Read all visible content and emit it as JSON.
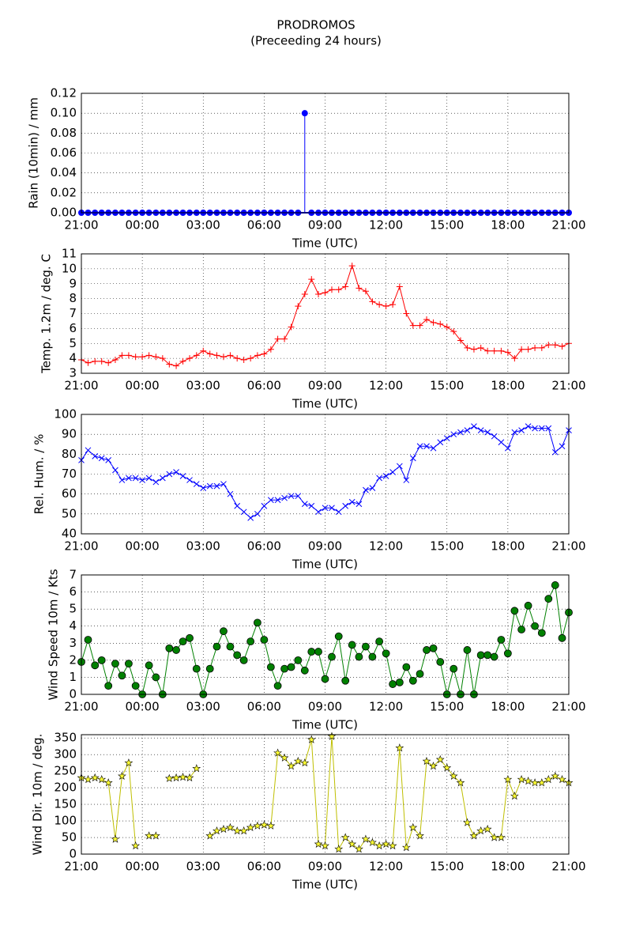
{
  "chart_data": [
    {
      "type": "stem",
      "title": "PRODROMOS",
      "subtitle": "(Preceeding 24 hours)",
      "ylabel": "Rain (10min) / mm",
      "xlabel": "Time (UTC)",
      "color": "#0000ff",
      "marker": "circle",
      "grid": true,
      "xlim": [
        0,
        24
      ],
      "xticks": [
        {
          "value": 0,
          "label": "21:00"
        },
        {
          "value": 3,
          "label": "00:00"
        },
        {
          "value": 6,
          "label": "03:00"
        },
        {
          "value": 9,
          "label": "06:00"
        },
        {
          "value": 12,
          "label": "09:00"
        },
        {
          "value": 15,
          "label": "12:00"
        },
        {
          "value": 18,
          "label": "15:00"
        },
        {
          "value": 21,
          "label": "18:00"
        },
        {
          "value": 24,
          "label": "21:00"
        }
      ],
      "ylim": [
        0,
        0.12
      ],
      "yticks": [
        {
          "value": 0,
          "label": "0.00"
        },
        {
          "value": 0.02,
          "label": "0.02"
        },
        {
          "value": 0.04,
          "label": "0.04"
        },
        {
          "value": 0.06,
          "label": "0.06"
        },
        {
          "value": 0.08,
          "label": "0.08"
        },
        {
          "value": 0.1,
          "label": "0.10"
        },
        {
          "value": 0.12,
          "label": "0.12"
        }
      ],
      "x": [
        0,
        0.33,
        0.67,
        1,
        1.33,
        1.67,
        2,
        2.33,
        2.67,
        3,
        3.33,
        3.67,
        4,
        4.33,
        4.67,
        5,
        5.33,
        5.67,
        6,
        6.33,
        6.67,
        7,
        7.33,
        7.67,
        8,
        8.33,
        8.67,
        9,
        9.33,
        9.67,
        10,
        10.33,
        10.67,
        11,
        11.33,
        11.67,
        12,
        12.33,
        12.67,
        13,
        13.33,
        13.67,
        14,
        14.33,
        14.67,
        15,
        15.33,
        15.67,
        16,
        16.33,
        16.67,
        17,
        17.33,
        17.67,
        18,
        18.33,
        18.67,
        19,
        19.33,
        19.67,
        20,
        20.33,
        20.67,
        21,
        21.33,
        21.67,
        22,
        22.33,
        22.67,
        23,
        23.33,
        23.67,
        24
      ],
      "values": [
        0,
        0,
        0,
        0,
        0,
        0,
        0,
        0,
        0,
        0,
        0,
        0,
        0,
        0,
        0,
        0,
        0,
        0,
        0,
        0,
        0,
        0,
        0,
        0,
        0,
        0,
        0,
        0,
        0,
        0,
        0,
        0,
        0,
        0.1,
        0,
        0,
        0,
        0,
        0,
        0,
        0,
        0,
        0,
        0,
        0,
        0,
        0,
        0,
        0,
        0,
        0,
        0,
        0,
        0,
        0,
        0,
        0,
        0,
        0,
        0,
        0,
        0,
        0,
        0,
        0,
        0,
        0,
        0,
        0,
        0,
        0,
        0,
        0
      ]
    },
    {
      "type": "line",
      "ylabel": "Temp. 1.2m / deg. C",
      "xlabel": "Time (UTC)",
      "color": "#ff0000",
      "marker": "plus",
      "grid": true,
      "xlim": [
        0,
        24
      ],
      "xticks": [
        {
          "value": 0,
          "label": "21:00"
        },
        {
          "value": 3,
          "label": "00:00"
        },
        {
          "value": 6,
          "label": "03:00"
        },
        {
          "value": 9,
          "label": "06:00"
        },
        {
          "value": 12,
          "label": "09:00"
        },
        {
          "value": 15,
          "label": "12:00"
        },
        {
          "value": 18,
          "label": "15:00"
        },
        {
          "value": 21,
          "label": "18:00"
        },
        {
          "value": 24,
          "label": "21:00"
        }
      ],
      "ylim": [
        3,
        11
      ],
      "yticks": [
        3,
        4,
        5,
        6,
        7,
        8,
        9,
        10,
        11
      ],
      "x": [
        0,
        0.33,
        0.67,
        1,
        1.33,
        1.67,
        2,
        2.33,
        2.67,
        3,
        3.33,
        3.67,
        4,
        4.33,
        4.67,
        5,
        5.33,
        5.67,
        6,
        6.33,
        6.67,
        7,
        7.33,
        7.67,
        8,
        8.33,
        8.67,
        9,
        9.33,
        9.67,
        10,
        10.33,
        10.67,
        11,
        11.33,
        11.67,
        12,
        12.33,
        12.67,
        13,
        13.33,
        13.67,
        14,
        14.33,
        14.67,
        15,
        15.33,
        15.67,
        16,
        16.33,
        16.67,
        17,
        17.33,
        17.67,
        18,
        18.33,
        18.67,
        19,
        19.33,
        19.67,
        20,
        20.33,
        20.67,
        21,
        21.33,
        21.67,
        22,
        22.33,
        22.67,
        23,
        23.33,
        23.67,
        24
      ],
      "values": [
        3.9,
        3.7,
        3.8,
        3.8,
        3.7,
        3.9,
        4.2,
        4.2,
        4.1,
        4.1,
        4.2,
        4.1,
        4.0,
        3.6,
        3.5,
        3.8,
        4.0,
        4.2,
        4.5,
        4.3,
        4.2,
        4.1,
        4.2,
        4.0,
        3.9,
        4.0,
        4.2,
        4.3,
        4.6,
        5.3,
        5.3,
        6.1,
        7.5,
        8.3,
        9.3,
        8.3,
        8.4,
        8.6,
        8.6,
        8.8,
        10.2,
        8.7,
        8.5,
        7.8,
        7.6,
        7.5,
        7.6,
        8.8,
        7.0,
        6.2,
        6.2,
        6.6,
        6.4,
        6.3,
        6.1,
        5.8,
        5.2,
        4.7,
        4.6,
        4.7,
        4.5,
        4.5,
        4.5,
        4.4,
        4.0,
        4.6,
        4.6,
        4.7,
        4.7,
        4.9,
        4.9,
        4.8,
        5.0
      ]
    },
    {
      "type": "line",
      "ylabel": "Rel. Hum. / %",
      "xlabel": "Time (UTC)",
      "color": "#0000ff",
      "marker": "cross",
      "grid": true,
      "xlim": [
        0,
        24
      ],
      "xticks": [
        {
          "value": 0,
          "label": "21:00"
        },
        {
          "value": 3,
          "label": "00:00"
        },
        {
          "value": 6,
          "label": "03:00"
        },
        {
          "value": 9,
          "label": "06:00"
        },
        {
          "value": 12,
          "label": "09:00"
        },
        {
          "value": 15,
          "label": "12:00"
        },
        {
          "value": 18,
          "label": "15:00"
        },
        {
          "value": 21,
          "label": "18:00"
        },
        {
          "value": 24,
          "label": "21:00"
        }
      ],
      "ylim": [
        40,
        100
      ],
      "yticks": [
        40,
        50,
        60,
        70,
        80,
        90,
        100
      ],
      "x": [
        0,
        0.33,
        0.67,
        1,
        1.33,
        1.67,
        2,
        2.33,
        2.67,
        3,
        3.33,
        3.67,
        4,
        4.33,
        4.67,
        5,
        5.33,
        5.67,
        6,
        6.33,
        6.67,
        7,
        7.33,
        7.67,
        8,
        8.33,
        8.67,
        9,
        9.33,
        9.67,
        10,
        10.33,
        10.67,
        11,
        11.33,
        11.67,
        12,
        12.33,
        12.67,
        13,
        13.33,
        13.67,
        14,
        14.33,
        14.67,
        15,
        15.33,
        15.67,
        16,
        16.33,
        16.67,
        17,
        17.33,
        17.67,
        18,
        18.33,
        18.67,
        19,
        19.33,
        19.67,
        20,
        20.33,
        20.67,
        21,
        21.33,
        21.67,
        22,
        22.33,
        22.67,
        23,
        23.33,
        23.67,
        24
      ],
      "values": [
        77,
        82,
        79,
        78,
        77,
        72,
        67,
        68,
        68,
        67,
        68,
        66,
        68,
        70,
        71,
        69,
        67,
        65,
        63,
        64,
        64,
        65,
        60,
        54,
        51,
        48,
        50,
        54,
        57,
        57,
        58,
        59,
        59,
        55,
        54,
        51,
        53,
        53,
        51,
        54,
        56,
        55,
        62,
        63,
        68,
        69,
        71,
        74,
        67,
        78,
        84,
        84,
        83,
        86,
        88,
        90,
        91,
        92,
        94,
        92,
        91,
        89,
        86,
        83,
        91,
        92,
        94,
        93,
        93,
        93,
        81,
        84,
        92
      ]
    },
    {
      "type": "line",
      "ylabel": "Wind Speed 10m / Kts",
      "xlabel": "Time (UTC)",
      "color": "#008000",
      "marker": "circle",
      "grid": true,
      "xlim": [
        0,
        24
      ],
      "xticks": [
        {
          "value": 0,
          "label": "21:00"
        },
        {
          "value": 3,
          "label": "00:00"
        },
        {
          "value": 6,
          "label": "03:00"
        },
        {
          "value": 9,
          "label": "06:00"
        },
        {
          "value": 12,
          "label": "09:00"
        },
        {
          "value": 15,
          "label": "12:00"
        },
        {
          "value": 18,
          "label": "15:00"
        },
        {
          "value": 21,
          "label": "18:00"
        },
        {
          "value": 24,
          "label": "21:00"
        }
      ],
      "ylim": [
        0,
        7
      ],
      "yticks": [
        0,
        1,
        2,
        3,
        4,
        5,
        6,
        7
      ],
      "x": [
        0,
        0.33,
        0.67,
        1,
        1.33,
        1.67,
        2,
        2.33,
        2.67,
        3,
        3.33,
        3.67,
        4,
        4.33,
        4.67,
        5,
        5.33,
        5.67,
        6,
        6.33,
        6.67,
        7,
        7.33,
        7.67,
        8,
        8.33,
        8.67,
        9,
        9.33,
        9.67,
        10,
        10.33,
        10.67,
        11,
        11.33,
        11.67,
        12,
        12.33,
        12.67,
        13,
        13.33,
        13.67,
        14,
        14.33,
        14.67,
        15,
        15.33,
        15.67,
        16,
        16.33,
        16.67,
        17,
        17.33,
        17.67,
        18,
        18.33,
        18.67,
        19,
        19.33,
        19.67,
        20,
        20.33,
        20.67,
        21,
        21.33,
        21.67,
        22,
        22.33,
        22.67,
        23,
        23.33,
        23.67,
        24
      ],
      "values": [
        1.9,
        3.2,
        1.7,
        2.0,
        0.5,
        1.8,
        1.1,
        1.8,
        0.5,
        0,
        1.7,
        1.0,
        0,
        2.7,
        2.6,
        3.1,
        3.3,
        1.5,
        0,
        1.5,
        2.8,
        3.7,
        2.8,
        2.3,
        2.0,
        3.1,
        4.2,
        3.2,
        1.6,
        0.5,
        1.5,
        1.6,
        2.0,
        1.4,
        2.5,
        2.5,
        0.9,
        2.2,
        3.4,
        0.8,
        2.9,
        2.2,
        2.8,
        2.2,
        3.1,
        2.4,
        0.6,
        0.7,
        1.6,
        0.8,
        1.2,
        2.6,
        2.7,
        1.9,
        0,
        1.5,
        0,
        2.6,
        0,
        2.3,
        2.3,
        2.2,
        3.2,
        2.4,
        4.9,
        3.8,
        5.2,
        4.0,
        3.6,
        5.6,
        6.4,
        3.3,
        4.8
      ]
    },
    {
      "type": "line",
      "ylabel": "Wind Dir. 10m / deg.",
      "xlabel": "Time (UTC)",
      "color": "#bfbf00",
      "marker": "star",
      "grid": true,
      "xlim": [
        0,
        24
      ],
      "xticks": [
        {
          "value": 0,
          "label": "21:00"
        },
        {
          "value": 3,
          "label": "00:00"
        },
        {
          "value": 6,
          "label": "03:00"
        },
        {
          "value": 9,
          "label": "06:00"
        },
        {
          "value": 12,
          "label": "09:00"
        },
        {
          "value": 15,
          "label": "12:00"
        },
        {
          "value": 18,
          "label": "15:00"
        },
        {
          "value": 21,
          "label": "18:00"
        },
        {
          "value": 24,
          "label": "21:00"
        }
      ],
      "ylim": [
        0,
        360
      ],
      "yticks": [
        0,
        50,
        100,
        150,
        200,
        250,
        300,
        350
      ],
      "x": [
        0,
        0.33,
        0.67,
        1,
        1.33,
        1.67,
        2,
        2.33,
        2.67,
        3,
        3.33,
        3.67,
        4,
        4.33,
        4.67,
        5,
        5.33,
        5.67,
        6,
        6.33,
        6.67,
        7,
        7.33,
        7.67,
        8,
        8.33,
        8.67,
        9,
        9.33,
        9.67,
        10,
        10.33,
        10.67,
        11,
        11.33,
        11.67,
        12,
        12.33,
        12.67,
        13,
        13.33,
        13.67,
        14,
        14.33,
        14.67,
        15,
        15.33,
        15.67,
        16,
        16.33,
        16.67,
        17,
        17.33,
        17.67,
        18,
        18.33,
        18.67,
        19,
        19.33,
        19.67,
        20,
        20.33,
        20.67,
        21,
        21.33,
        21.67,
        22,
        22.33,
        22.67,
        23,
        23.33,
        23.67,
        24
      ],
      "values": [
        230,
        225,
        230,
        225,
        215,
        45,
        235,
        275,
        25,
        null,
        55,
        55,
        null,
        228,
        230,
        232,
        230,
        258,
        null,
        55,
        70,
        75,
        80,
        70,
        70,
        80,
        85,
        88,
        85,
        305,
        290,
        265,
        280,
        275,
        345,
        30,
        25,
        355,
        15,
        50,
        30,
        15,
        45,
        35,
        25,
        30,
        25,
        320,
        20,
        80,
        55,
        280,
        265,
        285,
        260,
        235,
        215,
        95,
        55,
        70,
        75,
        50,
        50,
        225,
        175,
        225,
        220,
        215,
        215,
        225,
        235,
        225,
        215
      ]
    }
  ]
}
